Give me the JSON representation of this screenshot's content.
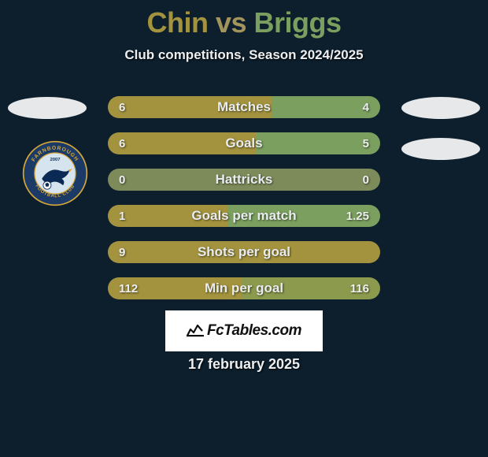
{
  "title": {
    "p1": "Chin",
    "vs": "vs",
    "p2": "Briggs"
  },
  "subtitle": "Club competitions, Season 2024/2025",
  "date": "17 february 2025",
  "logo_text": "FcTables.com",
  "colors": {
    "p1": "#a3933e",
    "p2": "#7a9f5e",
    "neutral": "#7d8a5a",
    "bg": "#0d1f2d",
    "text": "#eceef0"
  },
  "bars": [
    {
      "label": "Matches",
      "left_val": "6",
      "right_val": "4",
      "left_pct": 60,
      "right_pct": 40,
      "left_color": "#a3933e",
      "right_color": "#7a9f5e"
    },
    {
      "label": "Goals",
      "left_val": "6",
      "right_val": "5",
      "left_pct": 54.5,
      "right_pct": 45.5,
      "left_color": "#a3933e",
      "right_color": "#7a9f5e"
    },
    {
      "label": "Hattricks",
      "left_val": "0",
      "right_val": "0",
      "left_pct": 100,
      "right_pct": 0,
      "left_color": "#7d8a5a",
      "right_color": "#7d8a5a"
    },
    {
      "label": "Goals per match",
      "left_val": "1",
      "right_val": "1.25",
      "left_pct": 44,
      "right_pct": 56,
      "left_color": "#a3933e",
      "right_color": "#7a9f5e"
    },
    {
      "label": "Shots per goal",
      "left_val": "9",
      "right_val": "",
      "left_pct": 100,
      "right_pct": 0,
      "left_color": "#a3933e",
      "right_color": "#a3933e"
    },
    {
      "label": "Min per goal",
      "left_val": "112",
      "right_val": "116",
      "left_pct": 49,
      "right_pct": 51,
      "left_color": "#a3933e",
      "right_color": "#8b9a4c"
    }
  ],
  "badge": {
    "year": "2007",
    "name_top": "FARNBOROUGH",
    "name_bottom": "FOOTBALL CLUB",
    "ring_color": "#1c3a66",
    "ring_border": "#d6a83a",
    "inner_color": "#d6e4ef",
    "bird_body": "#0a2a55",
    "bird_beak": "#e0a530"
  }
}
